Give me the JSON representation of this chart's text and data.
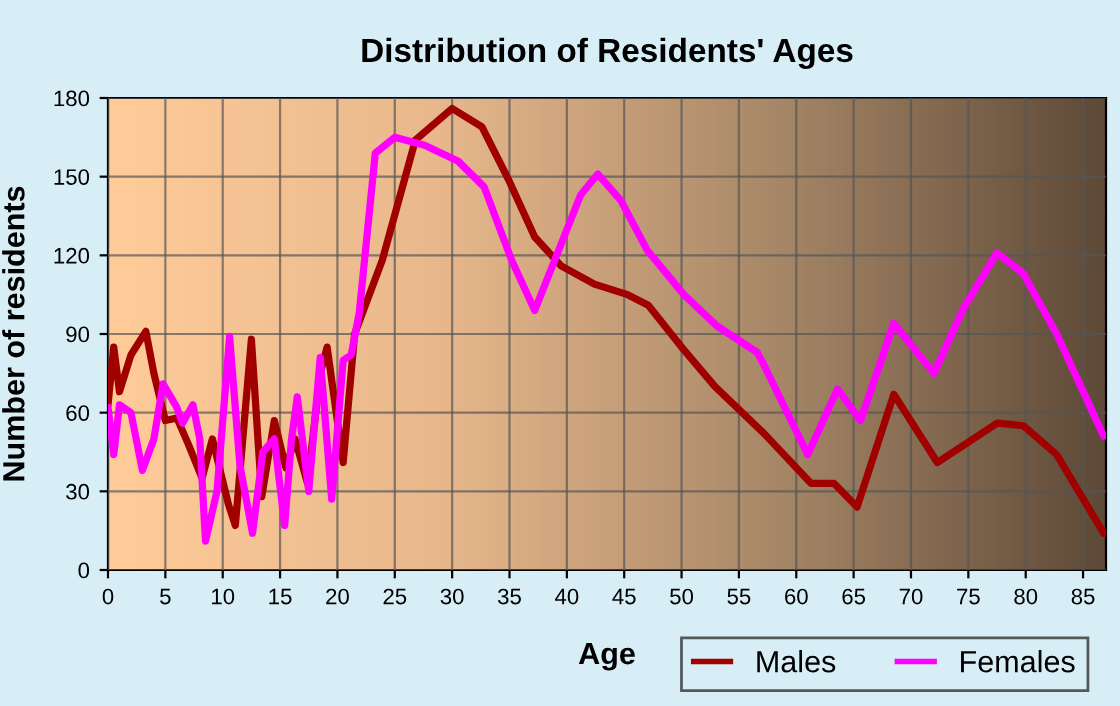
{
  "chart_data": {
    "type": "line",
    "title": "Distribution of Residents' Ages",
    "xlabel": "Age",
    "ylabel": "Number of residents",
    "xlim": [
      0,
      87
    ],
    "xticks": [
      0,
      5,
      10,
      15,
      20,
      25,
      30,
      35,
      40,
      45,
      50,
      55,
      60,
      65,
      70,
      75,
      80,
      85
    ],
    "ylim": [
      0,
      180
    ],
    "yticks": [
      0,
      30,
      60,
      90,
      120,
      150,
      180
    ],
    "grid": true,
    "legend": "bottom right",
    "marker": "none",
    "line_style": "solid",
    "series": [
      {
        "name": "Males",
        "color": "#a00000",
        "x": [
          0,
          0.5,
          1,
          2,
          3.3,
          4,
          5,
          6,
          7,
          8.2,
          9.1,
          10.5,
          11.1,
          12.5,
          13.4,
          14.5,
          15.5,
          16.3,
          17.4,
          18.5,
          19.1,
          20.5,
          21.5,
          23.9,
          26.8,
          30,
          32.6,
          34.9,
          37.2,
          39.5,
          42.4,
          45.3,
          47.1,
          50,
          52.9,
          57.2,
          61.3,
          63.3,
          65.3,
          68.5,
          72.3,
          77.5,
          79.8,
          82.7,
          86.8
        ],
        "values": [
          63,
          85,
          68,
          82,
          91,
          75,
          57,
          58,
          48,
          35,
          50,
          25,
          17,
          88,
          28,
          57,
          39,
          50,
          33,
          75,
          85,
          41,
          90,
          118,
          164,
          176,
          169,
          149,
          127,
          116,
          109,
          105,
          101,
          85,
          70,
          52,
          33,
          33,
          24,
          67,
          41,
          56,
          55,
          44,
          14
        ]
      },
      {
        "name": "Females",
        "color": "#ff00ff",
        "x": [
          0,
          0.5,
          1,
          2,
          3,
          4,
          4.8,
          6,
          6.5,
          7.4,
          8,
          8.5,
          9.5,
          10.6,
          11.5,
          12.6,
          13.5,
          14.5,
          15.4,
          16,
          16.5,
          17.5,
          18.5,
          19.5,
          20.5,
          21.2,
          21.9,
          23.3,
          25,
          27.6,
          30.5,
          32.8,
          35.2,
          37.2,
          39.2,
          41.2,
          42.7,
          44.7,
          47,
          50.2,
          53.1,
          56.6,
          57.2,
          61,
          63.6,
          65.6,
          68.5,
          72,
          74.6,
          77.5,
          79.8,
          82.7,
          86.8
        ],
        "values": [
          62,
          44,
          63,
          60,
          38,
          50,
          71,
          62,
          56,
          63,
          50,
          11,
          30,
          89,
          40,
          14,
          45,
          50,
          17,
          50,
          66,
          30,
          81,
          27,
          80,
          82,
          98,
          159,
          165,
          162,
          156,
          146,
          118,
          99,
          121,
          143,
          151,
          141,
          122,
          105,
          93,
          83,
          78,
          44,
          69,
          57,
          94,
          75,
          100,
          121,
          113,
          90,
          51
        ]
      }
    ]
  }
}
